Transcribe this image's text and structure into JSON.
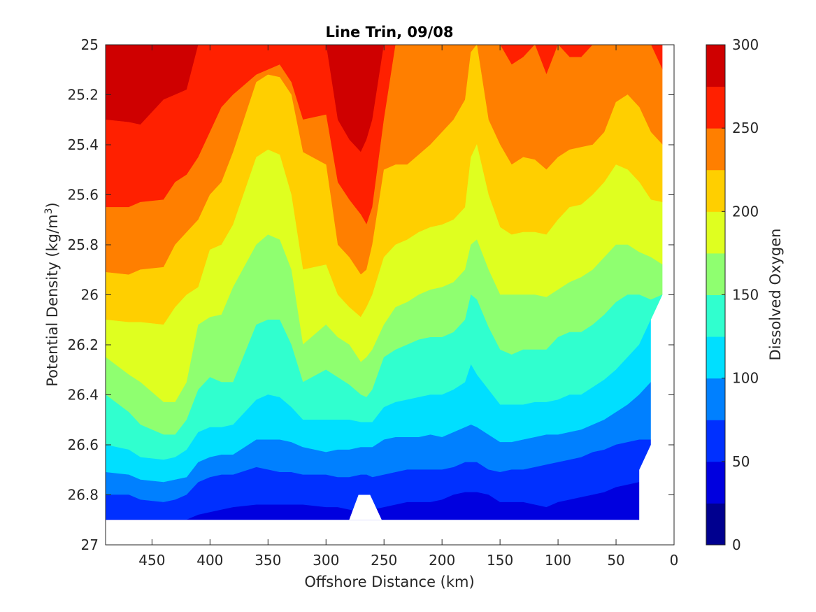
{
  "chart_data": {
    "type": "contour",
    "title": "Line Trin, 09/08",
    "xlabel": "Offshore Distance (km)",
    "ylabel_main": "Potential Density (kg/m",
    "ylabel_sup": "3",
    "ylabel_close": ")",
    "colorbar_label": "Dissolved Oxygen",
    "xlim": [
      490,
      0
    ],
    "ylim": [
      25,
      27
    ],
    "x_ticks": [
      "450",
      "400",
      "350",
      "300",
      "250",
      "200",
      "150",
      "100",
      "50",
      "0"
    ],
    "y_ticks": [
      "25",
      "25.2",
      "25.4",
      "25.6",
      "25.8",
      "26",
      "26.2",
      "26.4",
      "26.6",
      "26.8",
      "27"
    ],
    "colorbar_ticks": [
      "0",
      "50",
      "100",
      "150",
      "200",
      "250",
      "300"
    ],
    "colorbar_range": [
      0,
      300
    ],
    "contour_levels": [
      0,
      25,
      50,
      75,
      100,
      125,
      150,
      175,
      200,
      225,
      250,
      275,
      300
    ],
    "level_colors": [
      "#00008F",
      "#0000DF",
      "#0030FF",
      "#0080FF",
      "#00DFFF",
      "#30FFCF",
      "#8FFF70",
      "#DFFF20",
      "#FFCF00",
      "#FF7F00",
      "#FF2000",
      "#CF0000"
    ],
    "contour_boundaries_note": "lower density (y) of each oxygen contour vs offshore distance (x, km)",
    "x": [
      490,
      470,
      460,
      440,
      430,
      420,
      410,
      400,
      390,
      380,
      360,
      350,
      340,
      330,
      320,
      300,
      290,
      280,
      270,
      265,
      260,
      250,
      240,
      230,
      220,
      210,
      200,
      190,
      180,
      175,
      170,
      160,
      150,
      140,
      130,
      120,
      110,
      100,
      90,
      80,
      70,
      60,
      50,
      40,
      30,
      20,
      10
    ],
    "boundaries": [
      {
        "level": 275,
        "y": [
          25.3,
          25.31,
          25.32,
          25.22,
          25.2,
          25.18,
          25.0,
          25.0,
          25.0,
          25.0,
          25.0,
          25.0,
          25.0,
          25.0,
          25.0,
          25.0,
          25.3,
          25.38,
          25.43,
          25.38,
          25.3,
          25.0,
          25.0,
          25.0,
          25.0,
          25.0,
          25.0,
          25.0,
          25.0,
          25.0,
          25.0,
          25.0,
          25.0,
          25.0,
          25.0,
          25.0,
          25.0,
          25.0,
          25.0,
          25.0,
          25.0,
          25.0,
          25.0,
          25.0,
          25.0,
          25.0,
          25.0
        ]
      },
      {
        "level": 250,
        "y": [
          25.65,
          25.65,
          25.63,
          25.62,
          25.55,
          25.52,
          25.45,
          25.35,
          25.25,
          25.2,
          25.12,
          25.1,
          25.08,
          25.15,
          25.3,
          25.28,
          25.55,
          25.62,
          25.68,
          25.72,
          25.65,
          25.3,
          25.0,
          25.0,
          25.0,
          25.0,
          25.0,
          25.0,
          25.0,
          25.0,
          25.0,
          25.0,
          25.0,
          25.08,
          25.05,
          25.0,
          25.12,
          25.0,
          25.05,
          25.05,
          25.0,
          25.0,
          25.0,
          25.0,
          25.0,
          25.0,
          25.1
        ]
      },
      {
        "level": 225,
        "y": [
          25.91,
          25.92,
          25.9,
          25.89,
          25.8,
          25.75,
          25.7,
          25.6,
          25.55,
          25.43,
          25.15,
          25.12,
          25.13,
          25.2,
          25.43,
          25.48,
          25.8,
          25.85,
          25.92,
          25.9,
          25.8,
          25.5,
          25.48,
          25.48,
          25.44,
          25.4,
          25.35,
          25.3,
          25.22,
          25.03,
          25.0,
          25.3,
          25.4,
          25.48,
          25.45,
          25.46,
          25.5,
          25.45,
          25.42,
          25.41,
          25.4,
          25.35,
          25.23,
          25.2,
          25.25,
          25.35,
          25.4
        ]
      },
      {
        "level": 200,
        "y": [
          26.1,
          26.11,
          26.11,
          26.12,
          26.05,
          26.0,
          25.97,
          25.82,
          25.8,
          25.72,
          25.45,
          25.42,
          25.44,
          25.6,
          25.9,
          25.88,
          26.0,
          26.05,
          26.09,
          26.05,
          26.0,
          25.85,
          25.8,
          25.78,
          25.75,
          25.73,
          25.72,
          25.7,
          25.65,
          25.45,
          25.4,
          25.6,
          25.73,
          25.76,
          25.75,
          25.75,
          25.76,
          25.7,
          25.65,
          25.64,
          25.6,
          25.55,
          25.48,
          25.5,
          25.55,
          25.62,
          25.63
        ]
      },
      {
        "level": 175,
        "y": [
          26.25,
          26.32,
          26.35,
          26.43,
          26.43,
          26.35,
          26.12,
          26.09,
          26.08,
          25.97,
          25.8,
          25.76,
          25.78,
          25.9,
          26.2,
          26.12,
          26.17,
          26.2,
          26.27,
          26.25,
          26.22,
          26.12,
          26.05,
          26.03,
          26.0,
          25.98,
          25.97,
          25.95,
          25.9,
          25.8,
          25.78,
          25.9,
          26.0,
          26.0,
          26.0,
          26.0,
          26.01,
          25.98,
          25.95,
          25.93,
          25.9,
          25.85,
          25.8,
          25.8,
          25.83,
          25.85,
          25.88
        ]
      },
      {
        "level": 150,
        "y": [
          26.4,
          26.47,
          26.52,
          26.56,
          26.56,
          26.5,
          26.38,
          26.33,
          26.35,
          26.35,
          26.12,
          26.1,
          26.1,
          26.2,
          26.35,
          26.3,
          26.33,
          26.36,
          26.4,
          26.41,
          26.38,
          26.25,
          26.22,
          26.2,
          26.18,
          26.17,
          26.17,
          26.15,
          26.1,
          26.0,
          26.02,
          26.13,
          26.22,
          26.24,
          26.22,
          26.22,
          26.22,
          26.17,
          26.15,
          26.15,
          26.12,
          26.08,
          26.03,
          26.0,
          26.0,
          26.02,
          26.0
        ]
      },
      {
        "level": 125,
        "y": [
          26.6,
          26.62,
          26.65,
          26.66,
          26.65,
          26.62,
          26.55,
          26.53,
          26.53,
          26.52,
          26.42,
          26.4,
          26.41,
          26.45,
          26.5,
          26.5,
          26.5,
          26.5,
          26.51,
          26.51,
          26.51,
          26.45,
          26.43,
          26.42,
          26.41,
          26.4,
          26.4,
          26.38,
          26.35,
          26.28,
          26.32,
          26.38,
          26.44,
          26.44,
          26.44,
          26.43,
          26.43,
          26.42,
          26.4,
          26.4,
          26.37,
          26.34,
          26.3,
          26.25,
          26.2,
          26.1,
          26.1
        ]
      },
      {
        "level": 100,
        "y": [
          26.71,
          26.72,
          26.74,
          26.75,
          26.74,
          26.73,
          26.67,
          26.65,
          26.64,
          26.64,
          26.58,
          26.58,
          26.58,
          26.59,
          26.61,
          26.63,
          26.62,
          26.62,
          26.61,
          26.61,
          26.61,
          26.58,
          26.57,
          26.57,
          26.57,
          26.56,
          26.57,
          26.55,
          26.53,
          26.52,
          26.53,
          26.56,
          26.59,
          26.59,
          26.58,
          26.57,
          26.56,
          26.56,
          26.55,
          26.54,
          26.52,
          26.5,
          26.47,
          26.44,
          26.4,
          26.35,
          26.35
        ]
      },
      {
        "level": 75,
        "y": [
          26.8,
          26.8,
          26.82,
          26.83,
          26.82,
          26.8,
          26.75,
          26.73,
          26.72,
          26.72,
          26.69,
          26.7,
          26.71,
          26.71,
          26.72,
          26.72,
          26.73,
          26.73,
          26.72,
          26.72,
          26.73,
          26.72,
          26.71,
          26.7,
          26.7,
          26.7,
          26.7,
          26.69,
          26.67,
          26.67,
          26.67,
          26.7,
          26.71,
          26.7,
          26.7,
          26.69,
          26.68,
          26.67,
          26.66,
          26.65,
          26.63,
          26.62,
          26.6,
          26.59,
          26.58,
          26.58,
          26.58
        ]
      },
      {
        "level": 50,
        "y": [
          26.9,
          26.9,
          26.9,
          26.9,
          26.9,
          26.9,
          26.88,
          26.87,
          26.86,
          26.85,
          26.84,
          26.84,
          26.84,
          26.84,
          26.84,
          26.85,
          26.85,
          26.86,
          26.87,
          26.87,
          26.86,
          26.85,
          26.84,
          26.83,
          26.83,
          26.83,
          26.82,
          26.8,
          26.79,
          26.79,
          26.79,
          26.8,
          26.83,
          26.83,
          26.83,
          26.84,
          26.85,
          26.83,
          26.82,
          26.81,
          26.8,
          26.79,
          26.77,
          26.76,
          26.75,
          26.75,
          26.75
        ]
      }
    ]
  }
}
